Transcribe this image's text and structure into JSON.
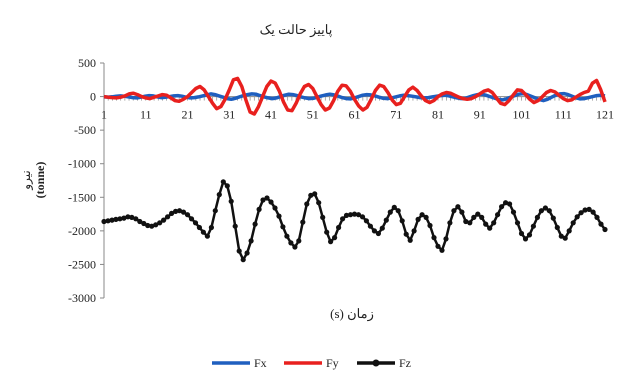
{
  "chart_data": {
    "type": "line",
    "title": "پاییز حالت یک",
    "xlabel": "(s) زمان",
    "ylabel": "نیرو",
    "ylabel_unit": "(tonne)",
    "ylim": [
      -3000,
      500
    ],
    "yticks": [
      500,
      0,
      -500,
      -1000,
      -1500,
      -2000,
      -2500,
      -3000
    ],
    "xlim": [
      1,
      121
    ],
    "xticks": [
      1,
      11,
      21,
      31,
      41,
      51,
      61,
      71,
      81,
      91,
      101,
      111,
      121
    ],
    "grid": false,
    "legend_position": "bottom",
    "series": [
      {
        "name": "Fx",
        "color": "#1f5fbf",
        "marker": "none",
        "values": [
          -5,
          -8,
          -3,
          5,
          10,
          5,
          -5,
          -15,
          -20,
          -10,
          5,
          15,
          10,
          -5,
          -15,
          -10,
          0,
          10,
          15,
          5,
          -10,
          -20,
          -15,
          -5,
          10,
          25,
          40,
          30,
          10,
          -10,
          -30,
          -40,
          -25,
          -5,
          15,
          30,
          40,
          35,
          15,
          -5,
          -20,
          -30,
          -20,
          0,
          20,
          35,
          30,
          15,
          -5,
          -20,
          -30,
          -25,
          -10,
          10,
          25,
          35,
          25,
          5,
          -15,
          -30,
          -35,
          -20,
          0,
          20,
          30,
          25,
          10,
          -10,
          -25,
          -30,
          -20,
          -5,
          10,
          20,
          15,
          5,
          -5,
          -15,
          -20,
          -15,
          -5,
          5,
          15,
          20,
          10,
          -5,
          -20,
          -30,
          -25,
          -5,
          15,
          30,
          35,
          20,
          0,
          -20,
          -40,
          -50,
          -35,
          -10,
          15,
          35,
          45,
          30,
          5,
          -20,
          -45,
          -60,
          -40,
          -10,
          20,
          40,
          45,
          30,
          5,
          -20,
          -35,
          -30,
          -15,
          0,
          15,
          20,
          10
        ]
      },
      {
        "name": "Fy",
        "color": "#e8201e",
        "marker": "none",
        "values": [
          0,
          -10,
          -15,
          -20,
          -10,
          10,
          40,
          50,
          30,
          0,
          -20,
          -30,
          -10,
          10,
          30,
          20,
          -20,
          -60,
          -70,
          -40,
          0,
          60,
          120,
          150,
          100,
          0,
          -100,
          -180,
          -150,
          -40,
          100,
          250,
          270,
          150,
          -50,
          -230,
          -260,
          -150,
          0,
          150,
          230,
          200,
          80,
          -80,
          -200,
          -210,
          -100,
          40,
          150,
          180,
          120,
          0,
          -120,
          -200,
          -170,
          -60,
          80,
          170,
          160,
          80,
          -40,
          -140,
          -200,
          -160,
          -40,
          90,
          170,
          150,
          60,
          -50,
          -120,
          -100,
          0,
          100,
          140,
          90,
          10,
          -60,
          -90,
          -60,
          0,
          40,
          60,
          50,
          20,
          -10,
          -30,
          -40,
          -30,
          0,
          40,
          80,
          100,
          60,
          -20,
          -100,
          -120,
          -60,
          20,
          100,
          90,
          30,
          -40,
          -90,
          -60,
          0,
          60,
          90,
          70,
          20,
          -30,
          -60,
          -50,
          -10,
          30,
          60,
          80,
          200,
          240,
          100,
          -80
        ]
      },
      {
        "name": "Fz",
        "color": "#111111",
        "marker": "circle",
        "values": [
          -1860,
          -1850,
          -1840,
          -1830,
          -1820,
          -1810,
          -1790,
          -1800,
          -1820,
          -1860,
          -1890,
          -1920,
          -1930,
          -1910,
          -1880,
          -1840,
          -1790,
          -1740,
          -1710,
          -1700,
          -1720,
          -1760,
          -1820,
          -1880,
          -1950,
          -2020,
          -2080,
          -1950,
          -1700,
          -1460,
          -1270,
          -1330,
          -1560,
          -1930,
          -2300,
          -2430,
          -2330,
          -2150,
          -1900,
          -1680,
          -1540,
          -1510,
          -1570,
          -1660,
          -1780,
          -1940,
          -2080,
          -2180,
          -2240,
          -2150,
          -1870,
          -1600,
          -1470,
          -1450,
          -1580,
          -1800,
          -2020,
          -2160,
          -2100,
          -1950,
          -1820,
          -1770,
          -1760,
          -1750,
          -1760,
          -1790,
          -1850,
          -1930,
          -2000,
          -2040,
          -1960,
          -1840,
          -1720,
          -1650,
          -1700,
          -1850,
          -2050,
          -2140,
          -2000,
          -1830,
          -1760,
          -1800,
          -1920,
          -2100,
          -2230,
          -2290,
          -2120,
          -1880,
          -1700,
          -1640,
          -1720,
          -1860,
          -1880,
          -1800,
          -1750,
          -1800,
          -1900,
          -1960,
          -1880,
          -1760,
          -1640,
          -1580,
          -1600,
          -1720,
          -1880,
          -2040,
          -2120,
          -2060,
          -1930,
          -1800,
          -1700,
          -1660,
          -1700,
          -1810,
          -1950,
          -2080,
          -2110,
          -2000,
          -1880,
          -1790,
          -1730,
          -1690,
          -1680,
          -1720,
          -1800,
          -1900,
          -1980
        ]
      }
    ]
  }
}
